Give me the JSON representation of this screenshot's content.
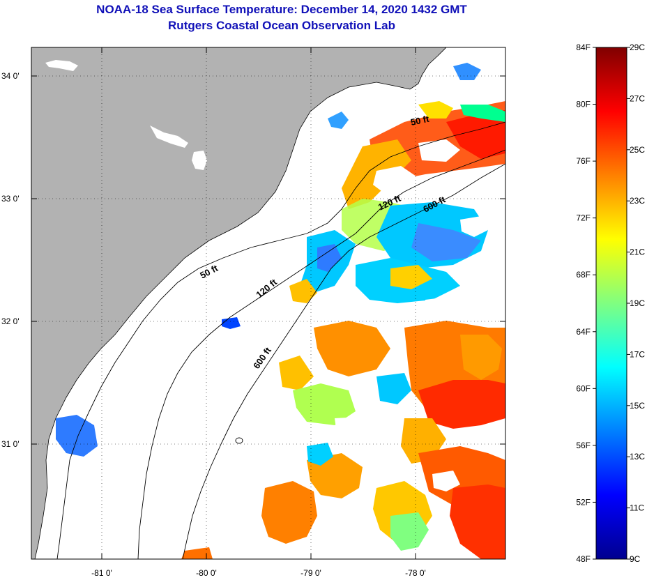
{
  "title": {
    "line1": "NOAA-18 Sea Surface Temperature:  December 14, 2020 1432 GMT",
    "line2": "Rutgers Coastal Ocean Observation Lab"
  },
  "map": {
    "lon_labels": [
      "-81 0'",
      "-80 0'",
      "-79 0'",
      "-78 0'"
    ],
    "lat_labels": [
      "34 0'",
      "33 0'",
      "32 0'",
      "31 0'"
    ],
    "contour_labels": [
      "50 ft",
      "120 ft",
      "600 ft",
      "50 ft",
      "120 ft",
      "600 ft"
    ],
    "colors": {
      "land": "#b2b2b2",
      "ocean_nodata": "#ffffff",
      "title": "#1010b8"
    }
  },
  "colorbar": {
    "fahrenheit_labels": [
      "84F",
      "80F",
      "76F",
      "72F",
      "68F",
      "64F",
      "60F",
      "56F",
      "52F",
      "48F"
    ],
    "celsius_labels": [
      "29C",
      "27C",
      "25C",
      "23C",
      "21C",
      "19C",
      "17C",
      "15C",
      "13C",
      "11C",
      "9C"
    ],
    "range_c": [
      9,
      29
    ],
    "colors": [
      "#00008f",
      "#0000ff",
      "#0080ff",
      "#00ffff",
      "#80ff80",
      "#ffff00",
      "#ff8000",
      "#ff0000",
      "#800000"
    ]
  }
}
